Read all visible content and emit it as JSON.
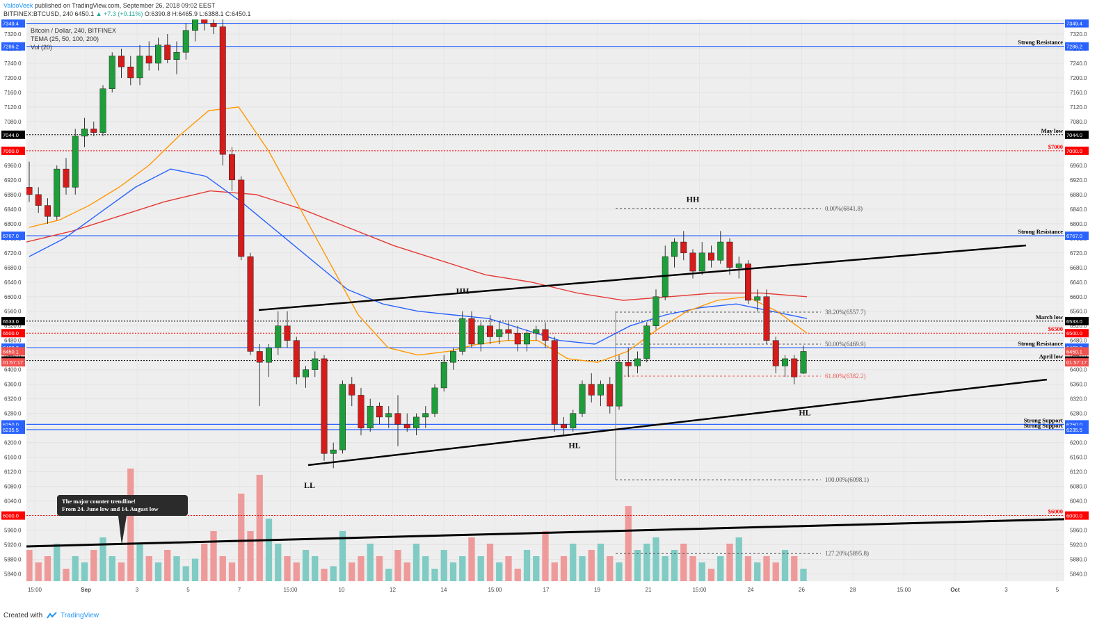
{
  "header": {
    "author": "ValdoVeek",
    "published": "published on TradingView.com, September 26, 2018 09:02 EEST",
    "symbol_line": "BITFINEX:BTCUSD, 240",
    "last_price": "6450.1",
    "change": "▲ +7.3 (+0.11%)",
    "ohlc": "O:6390.8 H:6465.9 L:6388.1 C:6450.1"
  },
  "legend": {
    "title": "Bitcoin / Dollar, 240, BITFINEX",
    "indicator": "TEMA (25, 50, 100, 200)",
    "volume": "Vol (20)"
  },
  "footer": {
    "created_with": "Created with",
    "brand": "TradingView"
  },
  "chart_data": {
    "type": "candlestick",
    "title": "Bitcoin / Dollar, 240, BITFINEX",
    "y_ticks": [
      5840,
      5880,
      5920,
      5960,
      6000,
      6040,
      6080,
      6120,
      6160,
      6200,
      6240,
      6280,
      6320,
      6360,
      6400,
      6440,
      6480,
      6520,
      6560,
      6600,
      6640,
      6680,
      6720,
      6760,
      6800,
      6840,
      6880,
      6920,
      6960,
      7000,
      7040,
      7080,
      7120,
      7160,
      7200,
      7240,
      7280,
      7320
    ],
    "y_tick_labels": [
      "5840.0",
      "5880.0",
      "5920.0",
      "5960.0",
      "6000.0",
      "6040.0",
      "6080.0",
      "6120.0",
      "6160.0",
      "6200.0",
      "6240.0",
      "6280.0",
      "6320.0",
      "6360.0",
      "6400.0",
      "6440.0",
      "6480.0",
      "6520.0",
      "6560.0",
      "6600.0",
      "6640.0",
      "6680.0",
      "6720.0",
      "6760.0",
      "6800.0",
      "6840.0",
      "6880.0",
      "6920.0",
      "6960.0",
      "7000.0",
      "7040.0",
      "7080.0",
      "7120.0",
      "7160.0",
      "7200.0",
      "7240.0",
      "7280.0",
      "7320.0"
    ],
    "x_tick_labels": [
      "15:00",
      "Sep",
      "3",
      "5",
      "7",
      "15:00",
      "10",
      "12",
      "14",
      "15:00",
      "17",
      "19",
      "21",
      "15:00",
      "24",
      "26",
      "28",
      "15:00",
      "Oct",
      "3",
      "5"
    ],
    "ylim": [
      5820,
      7360
    ],
    "colors": {
      "up": "#26a69a",
      "down": "#ef5350",
      "background": "#eeeeee",
      "tema25": "#ff9800",
      "tema50": "#2962ff",
      "tema100": "#e53935",
      "volume_up": "#80cbc4",
      "volume_down": "#ef9a9a"
    },
    "candles_ohlc": [
      [
        6900,
        6970,
        6860,
        6880
      ],
      [
        6880,
        6900,
        6830,
        6850
      ],
      [
        6850,
        6870,
        6800,
        6820
      ],
      [
        6820,
        6960,
        6810,
        6950
      ],
      [
        6950,
        6980,
        6880,
        6900
      ],
      [
        6900,
        7060,
        6880,
        7040
      ],
      [
        7040,
        7090,
        7010,
        7060
      ],
      [
        7060,
        7080,
        7040,
        7050
      ],
      [
        7050,
        7180,
        7040,
        7170
      ],
      [
        7170,
        7270,
        7160,
        7260
      ],
      [
        7260,
        7280,
        7200,
        7230
      ],
      [
        7230,
        7260,
        7180,
        7200
      ],
      [
        7200,
        7290,
        7180,
        7260
      ],
      [
        7260,
        7300,
        7220,
        7240
      ],
      [
        7240,
        7310,
        7220,
        7290
      ],
      [
        7290,
        7320,
        7240,
        7250
      ],
      [
        7250,
        7300,
        7210,
        7270
      ],
      [
        7270,
        7350,
        7250,
        7330
      ],
      [
        7330,
        7400,
        7300,
        7380
      ],
      [
        7380,
        7390,
        7330,
        7350
      ],
      [
        7350,
        7380,
        7320,
        7340
      ],
      [
        7340,
        7360,
        6960,
        6990
      ],
      [
        6990,
        7010,
        6890,
        6920
      ],
      [
        6920,
        6930,
        6700,
        6710
      ],
      [
        6710,
        6720,
        6440,
        6450
      ],
      [
        6450,
        6470,
        6300,
        6420
      ],
      [
        6420,
        6470,
        6380,
        6460
      ],
      [
        6460,
        6560,
        6440,
        6520
      ],
      [
        6520,
        6560,
        6460,
        6480
      ],
      [
        6480,
        6490,
        6360,
        6380
      ],
      [
        6380,
        6410,
        6350,
        6400
      ],
      [
        6400,
        6450,
        6380,
        6430
      ],
      [
        6430,
        6440,
        6150,
        6170
      ],
      [
        6170,
        6200,
        6130,
        6180
      ],
      [
        6180,
        6370,
        6170,
        6360
      ],
      [
        6360,
        6380,
        6300,
        6330
      ],
      [
        6330,
        6350,
        6220,
        6240
      ],
      [
        6240,
        6320,
        6230,
        6300
      ],
      [
        6300,
        6310,
        6250,
        6270
      ],
      [
        6270,
        6300,
        6240,
        6280
      ],
      [
        6280,
        6330,
        6190,
        6250
      ],
      [
        6250,
        6280,
        6230,
        6240
      ],
      [
        6240,
        6280,
        6220,
        6270
      ],
      [
        6270,
        6300,
        6240,
        6280
      ],
      [
        6280,
        6360,
        6270,
        6350
      ],
      [
        6350,
        6440,
        6340,
        6420
      ],
      [
        6420,
        6460,
        6400,
        6450
      ],
      [
        6450,
        6560,
        6440,
        6540
      ],
      [
        6540,
        6560,
        6460,
        6470
      ],
      [
        6470,
        6530,
        6450,
        6520
      ],
      [
        6520,
        6550,
        6470,
        6490
      ],
      [
        6490,
        6530,
        6470,
        6510
      ],
      [
        6510,
        6530,
        6480,
        6500
      ],
      [
        6500,
        6520,
        6450,
        6470
      ],
      [
        6470,
        6510,
        6450,
        6500
      ],
      [
        6500,
        6520,
        6480,
        6510
      ],
      [
        6510,
        6530,
        6460,
        6480
      ],
      [
        6480,
        6490,
        6230,
        6250
      ],
      [
        6250,
        6270,
        6220,
        6240
      ],
      [
        6240,
        6290,
        6230,
        6280
      ],
      [
        6280,
        6370,
        6270,
        6360
      ],
      [
        6360,
        6390,
        6310,
        6330
      ],
      [
        6330,
        6370,
        6300,
        6360
      ],
      [
        6360,
        6380,
        6280,
        6300
      ],
      [
        6300,
        6440,
        6290,
        6420
      ],
      [
        6420,
        6460,
        6380,
        6410
      ],
      [
        6410,
        6450,
        6390,
        6430
      ],
      [
        6430,
        6530,
        6420,
        6520
      ],
      [
        6520,
        6620,
        6510,
        6600
      ],
      [
        6600,
        6740,
        6590,
        6710
      ],
      [
        6710,
        6760,
        6680,
        6750
      ],
      [
        6750,
        6780,
        6700,
        6720
      ],
      [
        6720,
        6730,
        6650,
        6670
      ],
      [
        6670,
        6750,
        6660,
        6720
      ],
      [
        6720,
        6740,
        6680,
        6700
      ],
      [
        6700,
        6780,
        6690,
        6750
      ],
      [
        6750,
        6760,
        6660,
        6680
      ],
      [
        6680,
        6710,
        6650,
        6690
      ],
      [
        6690,
        6700,
        6580,
        6590
      ],
      [
        6590,
        6620,
        6560,
        6600
      ],
      [
        6600,
        6620,
        6470,
        6480
      ],
      [
        6480,
        6490,
        6390,
        6410
      ],
      [
        6410,
        6440,
        6380,
        6430
      ],
      [
        6430,
        6440,
        6360,
        6380
      ],
      [
        6390,
        6466,
        6388,
        6450
      ]
    ],
    "tema_25": [
      6790,
      6810,
      6850,
      6900,
      6960,
      7040,
      7110,
      7120,
      7000,
      6850,
      6700,
      6550,
      6460,
      6440,
      6450,
      6470,
      6480,
      6480,
      6430,
      6420,
      6450,
      6510,
      6560,
      6590,
      6600,
      6560,
      6500
    ],
    "tema_50": [
      6710,
      6760,
      6830,
      6900,
      6950,
      6930,
      6860,
      6780,
      6700,
      6620,
      6580,
      6560,
      6550,
      6540,
      6510,
      6480,
      6470,
      6520,
      6550,
      6570,
      6580,
      6560,
      6540
    ],
    "tema_100": [
      6750,
      6780,
      6820,
      6860,
      6890,
      6880,
      6840,
      6790,
      6740,
      6700,
      6660,
      6640,
      6610,
      6590,
      6600,
      6610,
      6610,
      6600
    ],
    "horizontal_levels": [
      {
        "price": 7349.4,
        "label_box": "7349.4",
        "text": "",
        "color": "#2962ff"
      },
      {
        "price": 7286.2,
        "label_box": "7286.2",
        "text": "Strong Resistance",
        "color": "#2962ff"
      },
      {
        "price": 7044.0,
        "label_box": "7044.0",
        "text": "May low",
        "color": "#000000"
      },
      {
        "price": 7000.0,
        "label_box": "7000.0",
        "text": "$7000",
        "color": "#ff0000"
      },
      {
        "price": 6767.0,
        "label_box": "6767.0",
        "text": "Strong Resistance",
        "color": "#2962ff"
      },
      {
        "price": 6533.0,
        "label_box": "6533.0",
        "text": "March low",
        "color": "#000000"
      },
      {
        "price": 6500.0,
        "label_box": "6500.0",
        "text": "$6500",
        "color": "#ff0000"
      },
      {
        "price": 6460.3,
        "label_box": "6460.3",
        "text": "Strong Resistance",
        "color": "#2962ff"
      },
      {
        "price": 6425.0,
        "label_box": "6425.0",
        "text": "April low",
        "color": "#000000"
      },
      {
        "price": 6250.0,
        "label_box": "6250.0",
        "text": "Strong Support",
        "color": "#2962ff"
      },
      {
        "price": 6235.5,
        "label_box": "6235.5",
        "text": "Strong Support",
        "color": "#2962ff"
      },
      {
        "price": 6000.0,
        "label_box": "6000.0",
        "text": "$6000",
        "color": "#ff0000"
      }
    ],
    "price_boxes": [
      {
        "price": 6450.1,
        "label": "6450.1",
        "color": "#ef5350"
      },
      {
        "price": 6420,
        "label": "01:57:17",
        "color": "#ef5350"
      }
    ],
    "fibonacci": [
      {
        "price": 6841.8,
        "label": "0.00%(6841.8)",
        "color": "#555555"
      },
      {
        "price": 6557.7,
        "label": "38.20%(6557.7)",
        "color": "#555555"
      },
      {
        "price": 6469.9,
        "label": "50.00%(6469.9)",
        "color": "#555555"
      },
      {
        "price": 6382.2,
        "label": "61.80%(6382.2)",
        "color": "#ef5350"
      },
      {
        "price": 6098.1,
        "label": "100.00%(6098.1)",
        "color": "#555555"
      },
      {
        "price": 5895.8,
        "label": "127.20%(5895.8)",
        "color": "#555555"
      }
    ],
    "annotations": [
      {
        "text": "HH",
        "price": 6860
      },
      {
        "text": "HH",
        "price": 6608
      },
      {
        "text": "HL",
        "price": 6275
      },
      {
        "text": "HL",
        "price": 6185
      },
      {
        "text": "LL",
        "price": 6075
      }
    ],
    "callout": {
      "line1": "The major counter trendline!",
      "line2": "From 24. June low and 14. August low"
    },
    "volume": [
      0.25,
      0.15,
      0.2,
      0.3,
      0.1,
      0.2,
      0.15,
      0.25,
      0.35,
      0.2,
      0.15,
      0.9,
      0.3,
      0.2,
      0.15,
      0.25,
      0.2,
      0.12,
      0.18,
      0.3,
      0.4,
      0.2,
      0.15,
      0.7,
      0.4,
      0.85,
      0.5,
      0.3,
      0.2,
      0.15,
      0.25,
      0.2,
      0.1,
      0.12,
      0.4,
      0.15,
      0.2,
      0.3,
      0.2,
      0.1,
      0.25,
      0.15,
      0.3,
      0.2,
      0.1,
      0.25,
      0.15,
      0.2,
      0.35,
      0.2,
      0.3,
      0.15,
      0.2,
      0.1,
      0.25,
      0.2,
      0.4,
      0.15,
      0.2,
      0.3,
      0.2,
      0.25,
      0.3,
      0.2,
      0.15,
      0.6,
      0.25,
      0.3,
      0.35,
      0.2,
      0.25,
      0.3,
      0.2,
      0.15,
      0.1,
      0.2,
      0.3,
      0.35,
      0.2,
      0.15,
      0.2,
      0.15,
      0.25,
      0.2,
      0.1
    ]
  }
}
